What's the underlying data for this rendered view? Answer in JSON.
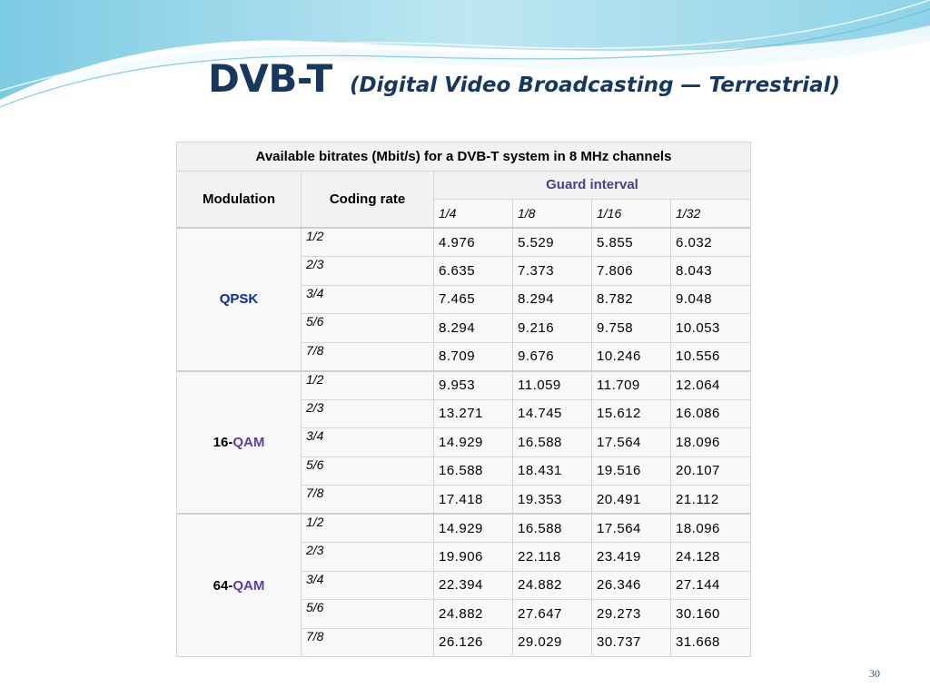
{
  "slide": {
    "title_main": "DVB-T",
    "title_sub": "(Digital Video Broadcasting — Terrestrial)",
    "page_number": "30"
  },
  "colors": {
    "title": "#17375e",
    "wave_light": "#bfe6f2",
    "wave_dark": "#6cc3de"
  },
  "table": {
    "caption": "Available bitrates (Mbit/s) for a DVB-T system in 8 MHz channels",
    "col_modulation": "Modulation",
    "col_coding_rate": "Coding rate",
    "col_guard_interval": "Guard interval",
    "guard_intervals": [
      "1/4",
      "1/8",
      "1/16",
      "1/32"
    ],
    "groups": [
      {
        "modulation": "QPSK",
        "prefix": "",
        "link": "QPSK",
        "rows": [
          {
            "rate": "1/2",
            "values": [
              "4.976",
              "5.529",
              "5.855",
              "6.032"
            ]
          },
          {
            "rate": "2/3",
            "values": [
              "6.635",
              "7.373",
              "7.806",
              "8.043"
            ]
          },
          {
            "rate": "3/4",
            "values": [
              "7.465",
              "8.294",
              "8.782",
              "9.048"
            ]
          },
          {
            "rate": "5/6",
            "values": [
              "8.294",
              "9.216",
              "9.758",
              "10.053"
            ]
          },
          {
            "rate": "7/8",
            "values": [
              "8.709",
              "9.676",
              "10.246",
              "10.556"
            ]
          }
        ]
      },
      {
        "modulation": "16-QAM",
        "prefix": "16-",
        "link": "QAM",
        "rows": [
          {
            "rate": "1/2",
            "values": [
              "9.953",
              "11.059",
              "11.709",
              "12.064"
            ]
          },
          {
            "rate": "2/3",
            "values": [
              "13.271",
              "14.745",
              "15.612",
              "16.086"
            ]
          },
          {
            "rate": "3/4",
            "values": [
              "14.929",
              "16.588",
              "17.564",
              "18.096"
            ]
          },
          {
            "rate": "5/6",
            "values": [
              "16.588",
              "18.431",
              "19.516",
              "20.107"
            ]
          },
          {
            "rate": "7/8",
            "values": [
              "17.418",
              "19.353",
              "20.491",
              "21.112"
            ]
          }
        ]
      },
      {
        "modulation": "64-QAM",
        "prefix": "64-",
        "link": "QAM",
        "rows": [
          {
            "rate": "1/2",
            "values": [
              "14.929",
              "16.588",
              "17.564",
              "18.096"
            ]
          },
          {
            "rate": "2/3",
            "values": [
              "19.906",
              "22.118",
              "23.419",
              "24.128"
            ]
          },
          {
            "rate": "3/4",
            "values": [
              "22.394",
              "24.882",
              "26.346",
              "27.144"
            ]
          },
          {
            "rate": "5/6",
            "values": [
              "24.882",
              "27.647",
              "29.273",
              "30.160"
            ]
          },
          {
            "rate": "7/8",
            "values": [
              "26.126",
              "29.029",
              "30.737",
              "31.668"
            ]
          }
        ]
      }
    ]
  }
}
